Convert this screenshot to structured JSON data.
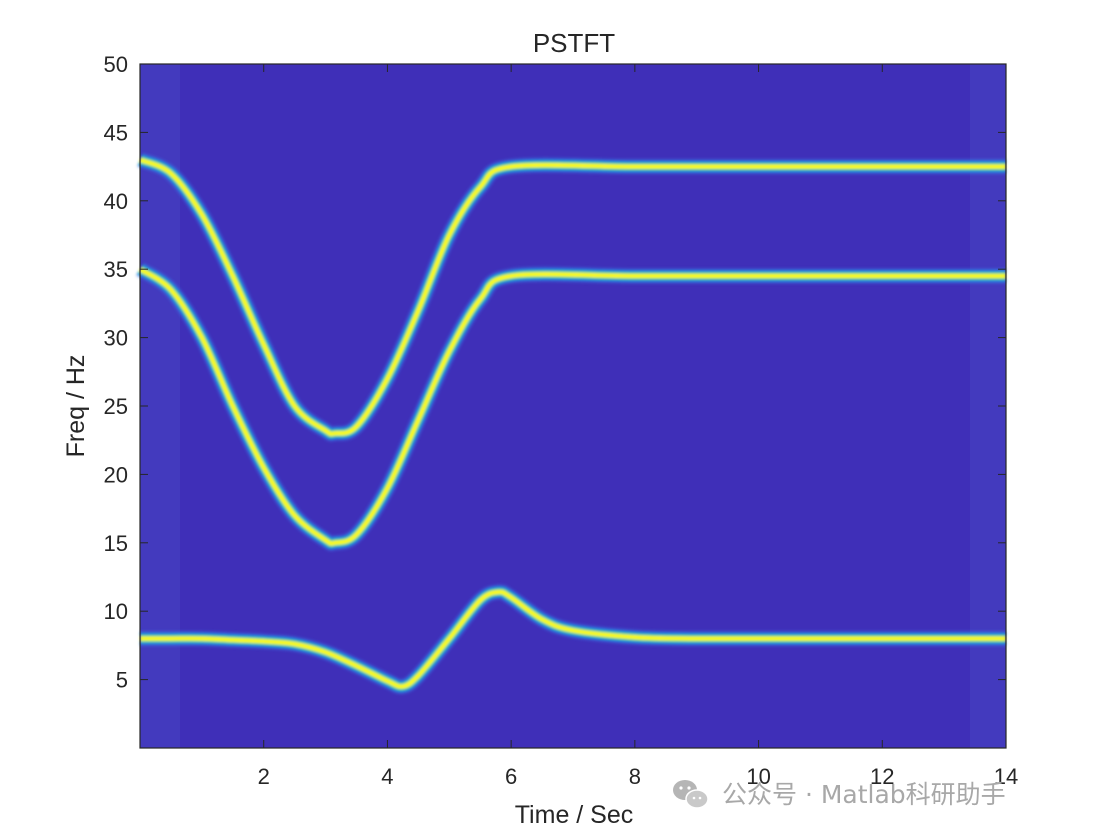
{
  "chart_data": {
    "type": "heatmap",
    "title": "PSTFT",
    "xlabel": "Time / Sec",
    "ylabel": "Freq / Hz",
    "xlim": [
      0,
      14
    ],
    "ylim": [
      0,
      50
    ],
    "xticks": [
      2,
      4,
      6,
      8,
      10,
      12,
      14
    ],
    "yticks": [
      5,
      10,
      15,
      20,
      25,
      30,
      35,
      40,
      45,
      50
    ],
    "colormap": "parula",
    "background_color": "#3f2fb8",
    "ridge_colors": {
      "core": "#fafa14",
      "mid": "#30c8a0",
      "edge": "#1f8fe6"
    },
    "grid": false,
    "legend": false,
    "ridges": [
      {
        "t": [
          0.0,
          0.5,
          1.0,
          1.5,
          2.0,
          2.5,
          3.0,
          3.15,
          3.5,
          4.0,
          4.5,
          5.0,
          5.5,
          6.0,
          8.0,
          10.0,
          12.0,
          14.0
        ],
        "f": [
          43.0,
          42.0,
          39.0,
          34.5,
          29.5,
          25.0,
          23.2,
          23.0,
          23.5,
          27.0,
          32.0,
          37.5,
          41.0,
          42.5,
          42.5,
          42.5,
          42.5,
          42.5
        ]
      },
      {
        "t": [
          0.0,
          0.5,
          1.0,
          1.5,
          2.0,
          2.5,
          3.0,
          3.15,
          3.5,
          4.0,
          4.5,
          5.0,
          5.5,
          6.0,
          8.0,
          10.0,
          12.0,
          14.0
        ],
        "f": [
          35.0,
          33.5,
          30.0,
          25.0,
          20.5,
          17.0,
          15.2,
          15.0,
          15.6,
          19.0,
          24.0,
          29.0,
          32.8,
          34.5,
          34.5,
          34.5,
          34.5,
          34.5
        ]
      },
      {
        "t": [
          0.0,
          0.5,
          1.0,
          1.5,
          2.0,
          2.5,
          3.0,
          3.5,
          4.0,
          4.25,
          4.5,
          5.0,
          5.5,
          5.8,
          6.0,
          6.5,
          7.0,
          8.0,
          9.0,
          10.0,
          12.0,
          14.0
        ],
        "f": [
          8.0,
          8.0,
          8.0,
          7.9,
          7.8,
          7.6,
          7.0,
          6.0,
          4.9,
          4.5,
          5.3,
          8.0,
          10.8,
          11.4,
          11.0,
          9.4,
          8.6,
          8.1,
          8.0,
          8.0,
          8.0,
          8.0
        ]
      }
    ]
  },
  "watermark": {
    "text": "公众号 · Matlab科研助手",
    "icon": "wechat-icon"
  }
}
